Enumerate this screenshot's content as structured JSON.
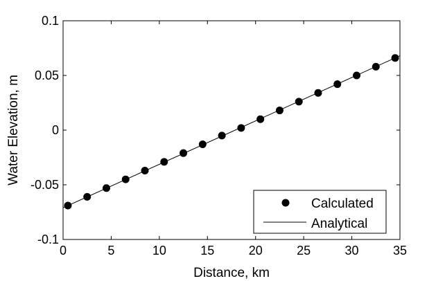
{
  "chart_data": {
    "type": "line",
    "xlabel": "Distance, km",
    "ylabel": "Water Elevation, m",
    "xlim": [
      0,
      35
    ],
    "ylim": [
      -0.1,
      0.1
    ],
    "xticks": [
      "0",
      "5",
      "10",
      "15",
      "20",
      "25",
      "30",
      "35"
    ],
    "yticks": [
      "-0.1",
      "-0.05",
      "0",
      "0.05",
      "0.1"
    ],
    "grid": false,
    "legend_position": "bottom-right",
    "series": [
      {
        "name": "Calculated",
        "style": "markers",
        "color": "#000000",
        "x": [
          0.5,
          2.5,
          4.5,
          6.5,
          8.5,
          10.5,
          12.5,
          14.5,
          16.5,
          18.5,
          20.5,
          22.5,
          24.5,
          26.5,
          28.5,
          30.5,
          32.5,
          34.5
        ],
        "y": [
          -0.069,
          -0.061,
          -0.053,
          -0.045,
          -0.037,
          -0.029,
          -0.021,
          -0.013,
          -0.005,
          0.002,
          0.01,
          0.018,
          0.026,
          0.034,
          0.042,
          0.05,
          0.058,
          0.066
        ]
      },
      {
        "name": "Analytical",
        "style": "line",
        "color": "#000000",
        "x": [
          0,
          35
        ],
        "y": [
          -0.071,
          0.068
        ]
      }
    ]
  }
}
